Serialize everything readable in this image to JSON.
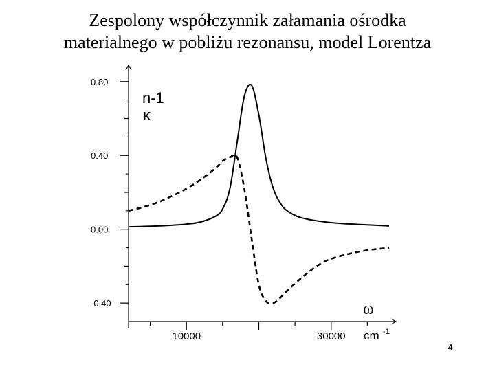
{
  "slide": {
    "title_line1": "Zespolony współczynnik załamania ośrodka",
    "title_line2": "materialnego w pobliżu rezonansu, model Lorentza",
    "page_number": "4"
  },
  "chart_data": {
    "type": "line",
    "title": "",
    "xlabel": "ω",
    "xunit": "cm",
    "xunit_exp": "-1",
    "ylabel": "",
    "xlim": [
      2000,
      38000
    ],
    "ylim": [
      -0.5,
      0.87
    ],
    "x_ticks": [
      10000,
      30000
    ],
    "x_tick_labels": [
      "10000",
      "30000"
    ],
    "y_ticks": [
      0.8,
      0.4,
      0.0,
      -0.4
    ],
    "y_tick_labels": [
      "0.80",
      "0.40",
      "0.00",
      "-0.40"
    ],
    "legend": [
      "n-1",
      "κ"
    ],
    "grid": false,
    "series": [
      {
        "name": "κ",
        "style": "solid",
        "x": [
          2000,
          6000,
          10000,
          12000,
          14000,
          15000,
          16000,
          17000,
          18000,
          19000,
          20000,
          21000,
          22000,
          23000,
          24000,
          26000,
          30000,
          34000,
          38000
        ],
        "y": [
          0.013,
          0.018,
          0.028,
          0.04,
          0.07,
          0.11,
          0.22,
          0.47,
          0.72,
          0.78,
          0.62,
          0.38,
          0.22,
          0.14,
          0.098,
          0.061,
          0.036,
          0.026,
          0.018
        ]
      },
      {
        "name": "n-1",
        "style": "dashed",
        "x": [
          2000,
          4000,
          6000,
          8000,
          10000,
          12000,
          14000,
          15000,
          16000,
          17000,
          18000,
          19000,
          20000,
          21000,
          22000,
          23000,
          24000,
          26000,
          28000,
          30000,
          34000,
          38000
        ],
        "y": [
          0.1,
          0.12,
          0.145,
          0.18,
          0.22,
          0.27,
          0.33,
          0.37,
          0.39,
          0.39,
          0.22,
          -0.05,
          -0.3,
          -0.39,
          -0.4,
          -0.37,
          -0.33,
          -0.26,
          -0.2,
          -0.16,
          -0.12,
          -0.1
        ]
      }
    ]
  }
}
